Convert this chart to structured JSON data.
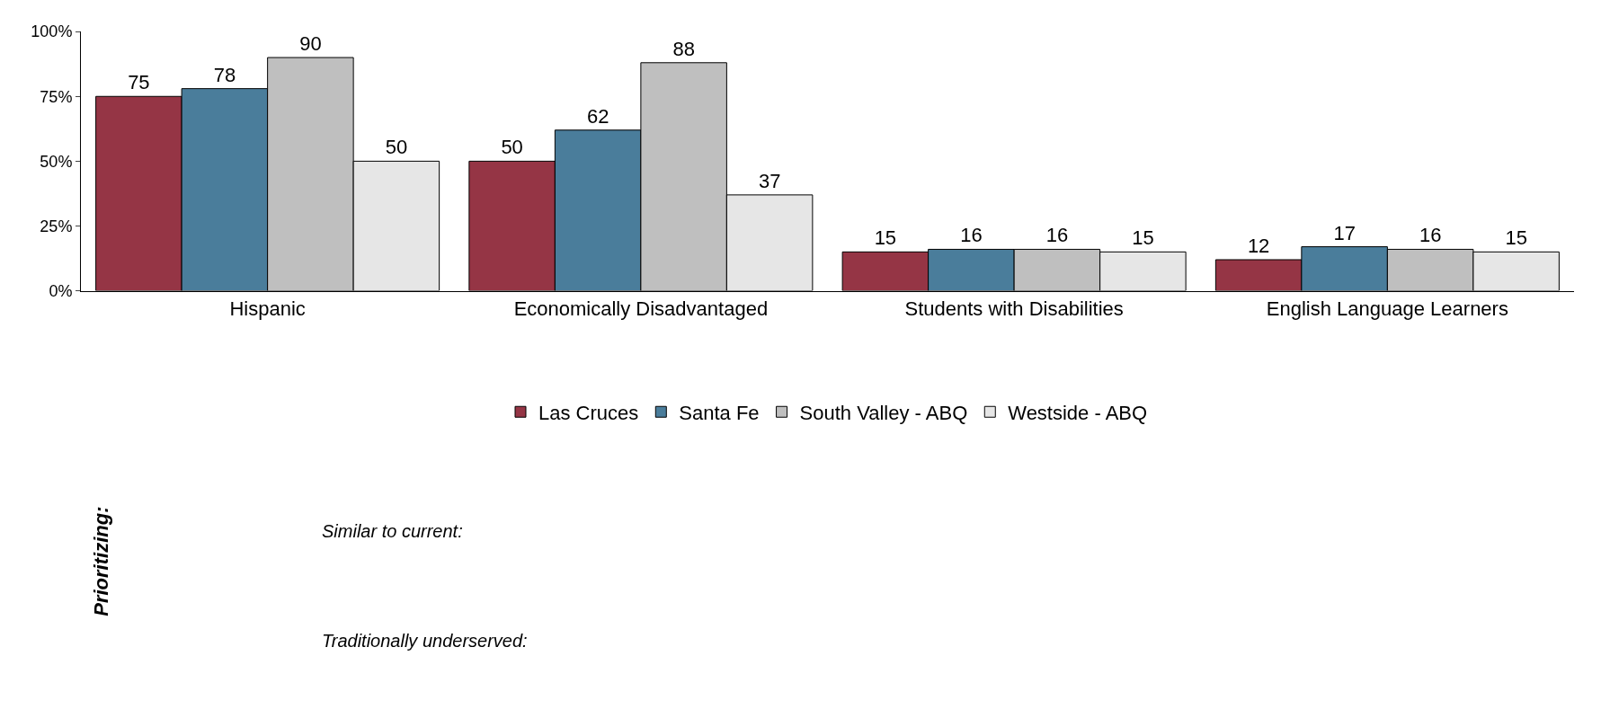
{
  "chart_data": {
    "type": "bar",
    "categories": [
      "Hispanic",
      "Economically Disadvantaged",
      "Students with Disabilities",
      "English Language Learners"
    ],
    "series": [
      {
        "name": "Las Cruces",
        "color": "#953545",
        "values": [
          75,
          50,
          15,
          12
        ]
      },
      {
        "name": "Santa Fe",
        "color": "#4a7d9b",
        "values": [
          78,
          62,
          16,
          17
        ]
      },
      {
        "name": "South Valley - ABQ",
        "color": "#bfbfbf",
        "values": [
          90,
          88,
          16,
          16
        ]
      },
      {
        "name": "Westside - ABQ",
        "color": "#e6e6e6",
        "values": [
          50,
          37,
          15,
          15
        ]
      }
    ],
    "ylim": [
      0,
      100
    ],
    "yticks": [
      {
        "value": 0,
        "label": "0%"
      },
      {
        "value": 25,
        "label": "25%"
      },
      {
        "value": 50,
        "label": "50%"
      },
      {
        "value": 75,
        "label": "75%"
      },
      {
        "value": 100,
        "label": "100%"
      }
    ],
    "legend": "bottom",
    "data_labels": true,
    "annotations": [
      "Prioritizing:",
      "Similar to current:",
      "Traditionally underserved:"
    ]
  }
}
